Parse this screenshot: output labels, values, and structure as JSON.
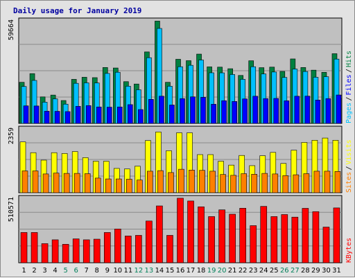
{
  "chart_data": {
    "type": "bar",
    "title": "Daily usage for January 2019",
    "categories": [
      "1",
      "2",
      "3",
      "4",
      "5",
      "6",
      "7",
      "8",
      "9",
      "10",
      "11",
      "12",
      "13",
      "14",
      "15",
      "16",
      "17",
      "18",
      "19",
      "20",
      "21",
      "22",
      "23",
      "24",
      "25",
      "26",
      "27",
      "28",
      "29",
      "30",
      "31"
    ],
    "weekend_days": [
      "5",
      "6",
      "12",
      "13",
      "19",
      "20",
      "26",
      "27"
    ],
    "panels": [
      {
        "name": "hits-panel",
        "ylim": [
          0,
          59664
        ],
        "max_label": "59664",
        "right_labels": [
          "Pages",
          "Files",
          "Hits"
        ],
        "label_colors": [
          "#00c0ff",
          "#0000ff",
          "#008040"
        ],
        "series": [
          {
            "name": "Hits",
            "color": "#008040",
            "values": [
              23590,
              28560,
              15210,
              16260,
              13130,
              25290,
              26480,
              26260,
              32070,
              31800,
              23960,
              22600,
              41020,
              58700,
              23590,
              36800,
              36000,
              39770,
              32440,
              32300,
              31380,
              27530,
              35950,
              31990,
              32300,
              29830,
              37000,
              32070,
              30560,
              29300,
              40000
            ]
          },
          {
            "name": "Files",
            "color": "#00c0ff",
            "values": [
              21180,
              24660,
              12170,
              14090,
              11040,
              23000,
              23270,
              23210,
              28680,
              29350,
              21340,
              19290,
              37700,
              54490,
              21340,
              32520,
              33350,
              36370,
              29040,
              29010,
              28060,
              25290,
              32520,
              28380,
              29490,
              26380,
              31200,
              29780,
              26480,
              26810,
              36910
            ]
          },
          {
            "name": "Pages",
            "color": "#0000ff",
            "values": [
              10070,
              10000,
              7000,
              6950,
              6780,
              9810,
              10230,
              9440,
              9330,
              9440,
              10770,
              7950,
              13800,
              15620,
              10560,
              14230,
              15240,
              15010,
              11000,
              13030,
              12600,
              14070,
              15600,
              14240,
              14340,
              12990,
              15600,
              15660,
              13410,
              14240,
              16300
            ]
          }
        ]
      },
      {
        "name": "visits-panel",
        "ylim": [
          0,
          2359
        ],
        "max_label": "2359",
        "right_labels": [
          "Sites",
          "Visits"
        ],
        "label_colors": [
          "#ff8000",
          "#ffff00"
        ],
        "series": [
          {
            "name": "Visits",
            "color": "#ffff00",
            "values": [
              1840,
              1450,
              1180,
              1450,
              1420,
              1490,
              1270,
              1140,
              1140,
              880,
              860,
              960,
              1890,
              2200,
              1520,
              2170,
              2170,
              1380,
              1380,
              1140,
              1000,
              1350,
              980,
              1340,
              1460,
              1060,
              1540,
              1820,
              1900,
              1980,
              1900
            ]
          },
          {
            "name": "Sites",
            "color": "#ff8000",
            "values": [
              790,
              790,
              680,
              710,
              700,
              700,
              690,
              530,
              500,
              500,
              490,
              460,
              780,
              800,
              730,
              850,
              820,
              810,
              780,
              660,
              630,
              690,
              670,
              700,
              680,
              620,
              650,
              690,
              780,
              780,
              770
            ]
          }
        ]
      },
      {
        "name": "kbytes-panel",
        "ylim": [
          0,
          510571
        ],
        "max_label": "510571",
        "right_labels": [
          "KBytes"
        ],
        "label_colors": [
          "#ff0000"
        ],
        "series": [
          {
            "name": "KBytes",
            "color": "#ff0000",
            "values": [
              234680,
              234680,
              148230,
              177870,
              143300,
              185280,
              177870,
              182810,
              234680,
              261850,
              207510,
              212450,
              323600,
              440690,
              212450,
              500410,
              478850,
              433710,
              358000,
              410150,
              376320,
              422770,
              287800,
              437210,
              358000,
              373700,
              353690,
              421960,
              396390,
              276590,
              425150
            ]
          }
        ]
      }
    ]
  }
}
